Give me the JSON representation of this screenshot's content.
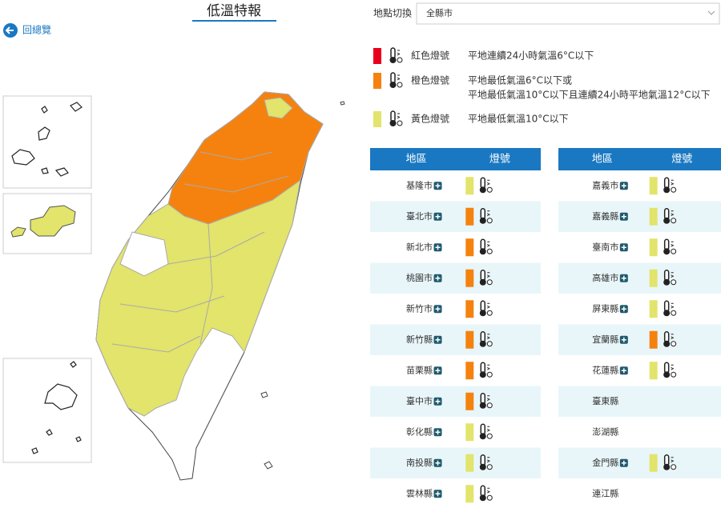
{
  "header": {
    "title": "低溫特報",
    "back_link": "回總覽"
  },
  "location": {
    "label": "地點切換",
    "selected": "全縣市"
  },
  "legend": {
    "items": [
      {
        "label": "紅色燈號",
        "color": "#e8001c",
        "desc": [
          "平地連續24小時氣溫6°C以下"
        ]
      },
      {
        "label": "橙色燈號",
        "color": "#f5820f",
        "desc": [
          "平地最低氣溫6°C以下或",
          "平地最低氣溫10°C以下且連續24小時平地氣溫12°C以下"
        ]
      },
      {
        "label": "黃色燈號",
        "color": "#e2e46b",
        "desc": [
          "平地最低氣溫10°C以下"
        ]
      }
    ]
  },
  "tables": [
    {
      "headers": [
        "地區",
        "燈號"
      ],
      "rows": [
        {
          "name": "基隆市",
          "color": "#e2e46b"
        },
        {
          "name": "臺北市",
          "color": "#f5820f"
        },
        {
          "name": "新北市",
          "color": "#f5820f"
        },
        {
          "name": "桃園市",
          "color": "#f5820f"
        },
        {
          "name": "新竹市",
          "color": "#f5820f"
        },
        {
          "name": "新竹縣",
          "color": "#f5820f"
        },
        {
          "name": "苗栗縣",
          "color": "#f5820f"
        },
        {
          "name": "臺中市",
          "color": "#f5820f"
        },
        {
          "name": "彰化縣",
          "color": "#e2e46b"
        },
        {
          "name": "南投縣",
          "color": "#e2e46b"
        },
        {
          "name": "雲林縣",
          "color": "#e2e46b"
        }
      ]
    },
    {
      "headers": [
        "地區",
        "燈號"
      ],
      "rows": [
        {
          "name": "嘉義市",
          "color": "#e2e46b"
        },
        {
          "name": "嘉義縣",
          "color": "#e2e46b"
        },
        {
          "name": "臺南市",
          "color": "#e2e46b"
        },
        {
          "name": "高雄市",
          "color": "#e2e46b"
        },
        {
          "name": "屏東縣",
          "color": "#e2e46b"
        },
        {
          "name": "宜蘭縣",
          "color": "#f5820f"
        },
        {
          "name": "花蓮縣",
          "color": "#e2e46b"
        },
        {
          "name": "臺東縣",
          "color": null
        },
        {
          "name": "澎湖縣",
          "color": null
        },
        {
          "name": "金門縣",
          "color": "#e2e46b"
        },
        {
          "name": "連江縣",
          "color": null
        }
      ]
    }
  ]
}
